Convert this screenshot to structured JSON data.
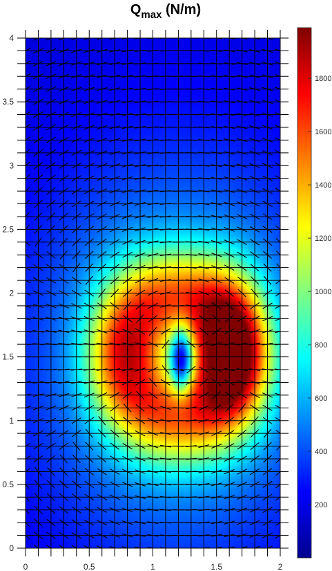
{
  "chart_data": {
    "type": "heatmap",
    "title": {
      "main": "Q",
      "subscript": "max",
      "units": " (N/m)"
    },
    "xlabel": "",
    "ylabel": "",
    "xlim": [
      0,
      2
    ],
    "ylim": [
      0,
      4
    ],
    "x_ticks": [
      "0",
      "0.5",
      "1",
      "1.5",
      "2"
    ],
    "y_ticks": [
      "0",
      "0.5",
      "1",
      "1.5",
      "2",
      "2.5",
      "3",
      "3.5",
      "4"
    ],
    "colorbar": {
      "colormap": "jet",
      "range": [
        0,
        1990
      ],
      "ticks": [
        "200",
        "400",
        "600",
        "800",
        "1000",
        "1200",
        "1400",
        "1600",
        "1800"
      ]
    },
    "field": {
      "peak_value": 1990,
      "peak_location": [
        1.62,
        1.55
      ],
      "min_value": 150,
      "min_location": [
        1.22,
        1.48
      ],
      "background_value": 180
    },
    "overlay": "mesh grid with quiver arrows showing principal direction",
    "grid": true
  }
}
